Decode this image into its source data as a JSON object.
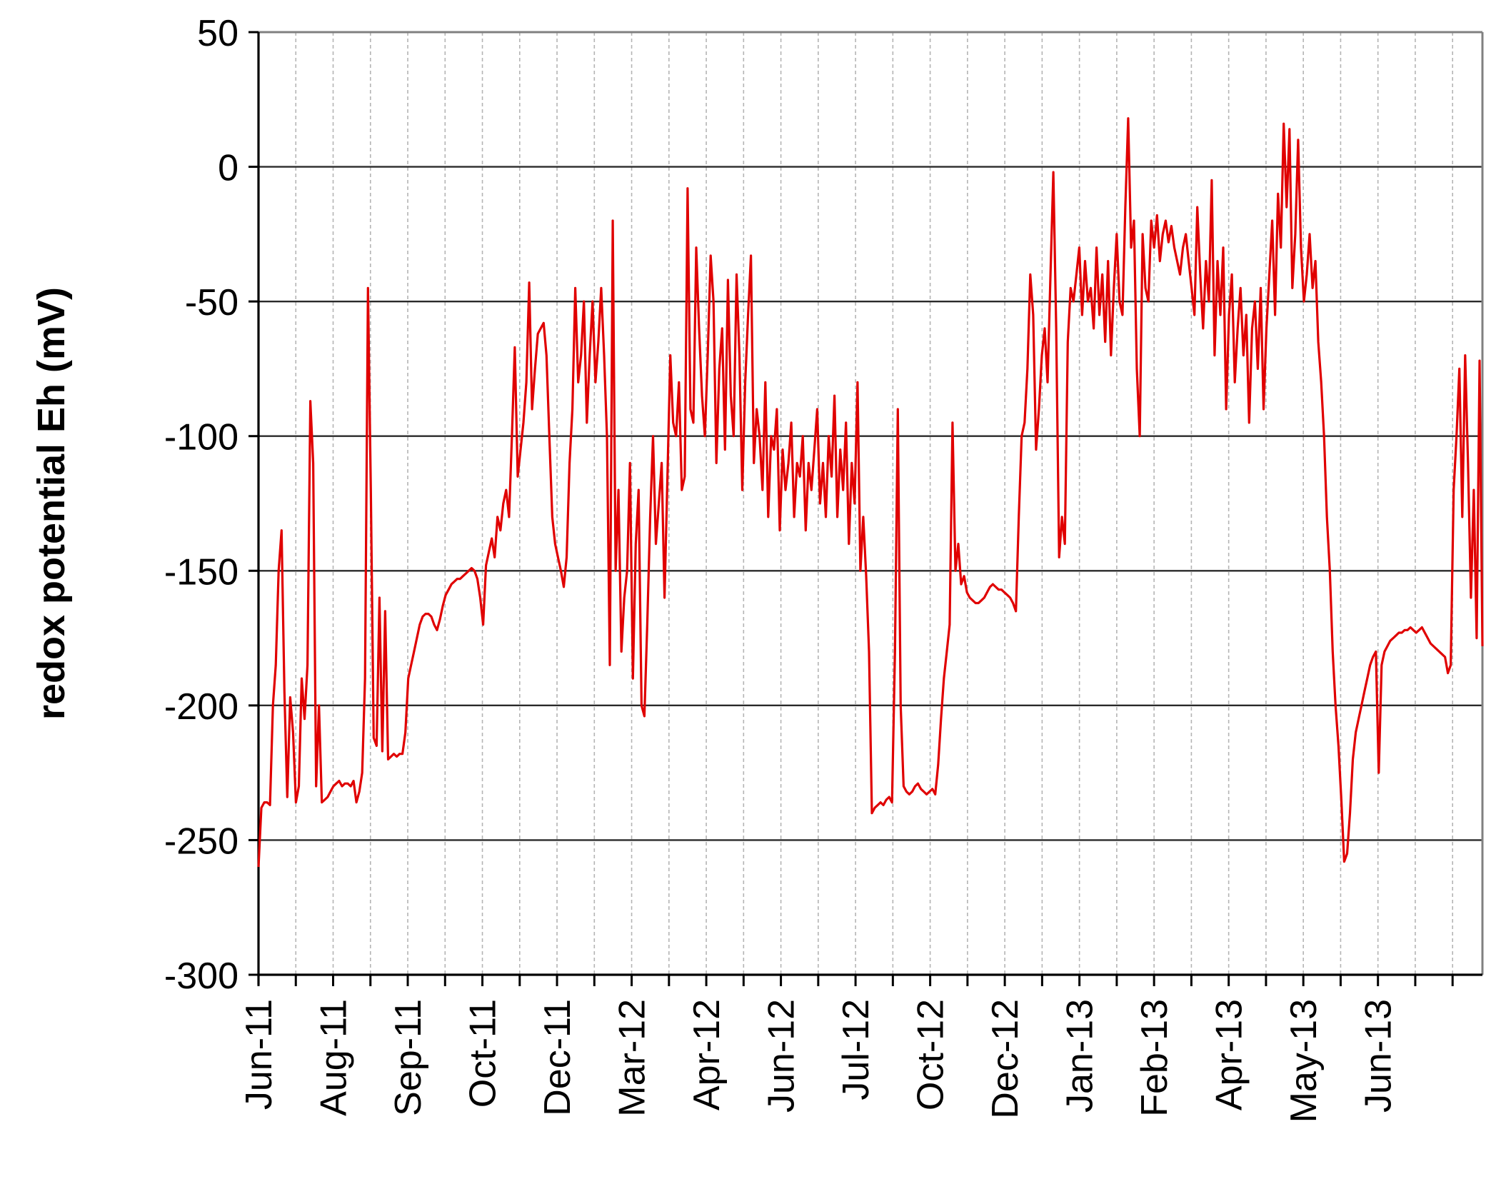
{
  "chart_data": {
    "type": "line",
    "title": "",
    "xlabel": "",
    "ylabel": "redox potential Eh (mV)",
    "ylim": [
      -300,
      50
    ],
    "yticks": [
      50,
      0,
      -50,
      -100,
      -150,
      -200,
      -250,
      -300
    ],
    "xtick_labels": [
      "Jun-11",
      "Aug-11",
      "Sep-11",
      "Oct-11",
      "Dec-11",
      "Mar-12",
      "Apr-12",
      "Jun-12",
      "Jul-12",
      "Oct-12",
      "Dec-12",
      "Jan-13",
      "Feb-13",
      "Apr-13",
      "May-13",
      "Jun-13"
    ],
    "minor_gridlines_per_major": 1,
    "grid": {
      "horizontal": true,
      "vertical_dashed": true
    },
    "legend": "none",
    "series_color": "#e00000",
    "series": [
      {
        "values": [
          -260,
          -238,
          -236,
          -236,
          -237,
          -200,
          -185,
          -150,
          -135,
          -195,
          -234,
          -197,
          -210,
          -236,
          -230,
          -190,
          -205,
          -185,
          -87,
          -110,
          -230,
          -200,
          -236,
          -235,
          -234,
          -232,
          -230,
          -229,
          -228,
          -230,
          -229,
          -229,
          -230,
          -228,
          -236,
          -232,
          -225,
          -190,
          -45,
          -120,
          -212,
          -215,
          -160,
          -217,
          -165,
          -220,
          -219,
          -218,
          -219,
          -218,
          -218,
          -210,
          -190,
          -185,
          -180,
          -175,
          -170,
          -167,
          -166,
          -166,
          -167,
          -170,
          -172,
          -168,
          -163,
          -159,
          -157,
          -155,
          -154,
          -153,
          -153,
          -152,
          -151,
          -150,
          -149,
          -150,
          -153,
          -160,
          -170,
          -148,
          -143,
          -138,
          -145,
          -130,
          -135,
          -125,
          -120,
          -130,
          -100,
          -67,
          -115,
          -105,
          -95,
          -80,
          -43,
          -90,
          -75,
          -62,
          -60,
          -58,
          -70,
          -100,
          -130,
          -140,
          -145,
          -150,
          -156,
          -145,
          -110,
          -90,
          -45,
          -80,
          -70,
          -50,
          -95,
          -70,
          -50,
          -80,
          -65,
          -45,
          -70,
          -100,
          -185,
          -20,
          -150,
          -120,
          -180,
          -160,
          -150,
          -110,
          -190,
          -140,
          -120,
          -200,
          -204,
          -170,
          -130,
          -100,
          -140,
          -125,
          -110,
          -160,
          -115,
          -70,
          -95,
          -100,
          -80,
          -120,
          -115,
          -8,
          -90,
          -95,
          -30,
          -60,
          -85,
          -100,
          -70,
          -33,
          -50,
          -110,
          -75,
          -60,
          -105,
          -42,
          -85,
          -100,
          -40,
          -70,
          -120,
          -80,
          -55,
          -33,
          -110,
          -90,
          -100,
          -120,
          -80,
          -130,
          -100,
          -105,
          -90,
          -135,
          -105,
          -120,
          -110,
          -95,
          -130,
          -110,
          -115,
          -100,
          -135,
          -110,
          -120,
          -105,
          -90,
          -125,
          -110,
          -130,
          -100,
          -115,
          -85,
          -130,
          -105,
          -120,
          -95,
          -140,
          -110,
          -125,
          -80,
          -150,
          -130,
          -152,
          -180,
          -240,
          -238,
          -237,
          -236,
          -237,
          -235,
          -234,
          -236,
          -180,
          -90,
          -200,
          -230,
          -232,
          -233,
          -232,
          -230,
          -229,
          -231,
          -232,
          -233,
          -232,
          -231,
          -233,
          -222,
          -205,
          -190,
          -180,
          -170,
          -95,
          -150,
          -140,
          -155,
          -152,
          -158,
          -160,
          -161,
          -162,
          -162,
          -161,
          -160,
          -158,
          -156,
          -155,
          -156,
          -157,
          -157,
          -158,
          -159,
          -160,
          -162,
          -165,
          -130,
          -100,
          -95,
          -75,
          -40,
          -55,
          -105,
          -90,
          -70,
          -60,
          -80,
          -40,
          -2,
          -60,
          -145,
          -130,
          -140,
          -65,
          -45,
          -50,
          -40,
          -30,
          -55,
          -35,
          -50,
          -45,
          -60,
          -30,
          -55,
          -40,
          -65,
          -35,
          -70,
          -45,
          -25,
          -50,
          -55,
          -15,
          18,
          -30,
          -20,
          -75,
          -100,
          -25,
          -45,
          -50,
          -20,
          -30,
          -18,
          -35,
          -25,
          -20,
          -28,
          -22,
          -30,
          -35,
          -40,
          -30,
          -25,
          -35,
          -45,
          -55,
          -15,
          -40,
          -60,
          -35,
          -50,
          -5,
          -70,
          -35,
          -55,
          -30,
          -90,
          -55,
          -40,
          -80,
          -60,
          -45,
          -70,
          -55,
          -95,
          -60,
          -50,
          -75,
          -45,
          -90,
          -60,
          -40,
          -20,
          -55,
          -10,
          -30,
          16,
          -15,
          14,
          -45,
          -25,
          10,
          -30,
          -50,
          -40,
          -25,
          -45,
          -35,
          -65,
          -80,
          -100,
          -130,
          -150,
          -180,
          -200,
          -215,
          -235,
          -258,
          -255,
          -240,
          -220,
          -210,
          -205,
          -200,
          -195,
          -190,
          -185,
          -182,
          -180,
          -225,
          -185,
          -180,
          -178,
          -176,
          -175,
          -174,
          -173,
          -173,
          -172,
          -172,
          -171,
          -172,
          -173,
          -172,
          -171,
          -173,
          -175,
          -177,
          -178,
          -179,
          -180,
          -181,
          -182,
          -188,
          -185,
          -120,
          -100,
          -75,
          -130,
          -70,
          -110,
          -160,
          -120,
          -175,
          -72,
          -178
        ]
      }
    ]
  }
}
